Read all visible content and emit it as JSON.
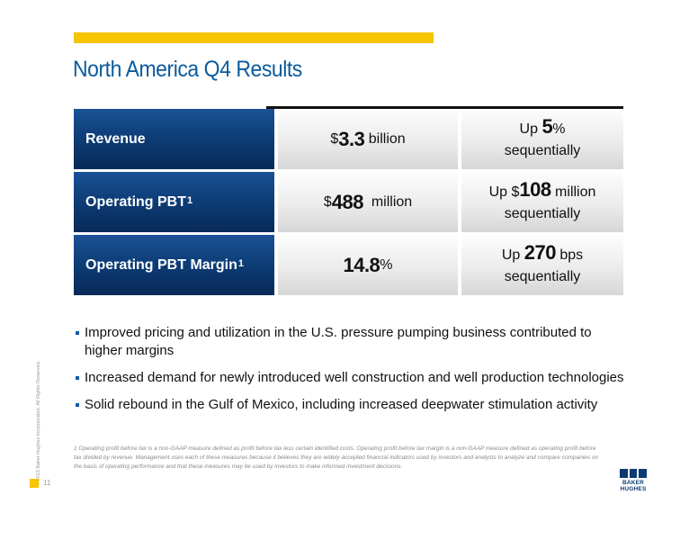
{
  "title": "North America Q4 Results",
  "rows": [
    {
      "label": "Revenue",
      "label_sup": "",
      "value_prefix": "$",
      "value_main": "3.3",
      "value_suffix": " billion",
      "change_prefix": "Up ",
      "change_main": "5",
      "change_suffix": "%",
      "change_line2": "sequentially"
    },
    {
      "label": "Operating PBT",
      "label_sup": "1",
      "value_prefix": "$",
      "value_main": "488",
      "value_suffix": "  million",
      "change_prefix": "Up $",
      "change_main": "108",
      "change_suffix": " million",
      "change_line2": "sequentially"
    },
    {
      "label": "Operating PBT Margin",
      "label_sup": "1",
      "value_prefix": "",
      "value_main": "14.8",
      "value_suffix": "%",
      "change_prefix": "Up ",
      "change_main": "270",
      "change_suffix": " bps",
      "change_line2": "sequentially"
    }
  ],
  "bullets": [
    "Improved pricing and utilization in the U.S. pressure pumping business contributed to higher margins",
    "Increased demand for newly introduced well construction and well production technologies",
    "Solid rebound in the Gulf of Mexico, including increased deepwater stimulation activity"
  ],
  "footnote": "1 Operating profit before tax is a non-GAAP measure defined as profit before tax less certain identified costs.  Operating profit before tax margin is a non-GAAP measure defined as operating profit before tax divided by revenue. Management uses each of these measures because it believes they are widely accepted financial indicators used by investors and analysts to analyze and compare companies on the basis of operating performance and that these measures may be used by investors to make informed investment decisions.",
  "copyright": "© 2013 Baker Hughes Incorporated. All Rights Reserved.",
  "page_number": "11",
  "logo": {
    "line1": "BAKER",
    "line2": "HUGHES"
  },
  "colors": {
    "accent_yellow": "#f6c400",
    "title_blue": "#0a5a9c",
    "label_navy": "#0c3a72"
  }
}
